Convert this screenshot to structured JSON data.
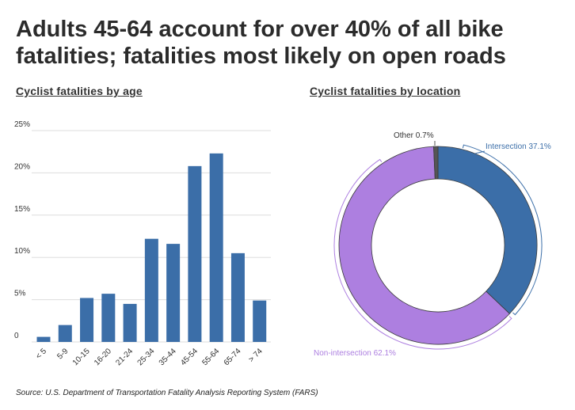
{
  "title": "Adults 45-64 account for over 40% of all bike fatalities; fatalities most likely on open roads",
  "source": "Source: U.S. Department of Transportation Fatality Analysis Reporting System (FARS)",
  "colors": {
    "bar": "#3b6ea8",
    "intersection": "#3b6ea8",
    "non_intersection": "#ad7fe0",
    "other": "#555555",
    "grid": "#dddddd"
  },
  "chart_data": [
    {
      "type": "bar",
      "title": "Cyclist fatalities by age",
      "categories": [
        "< 5",
        "5-9",
        "10-15",
        "16-20",
        "21-24",
        "25-34",
        "35-44",
        "45-54",
        "55-64",
        "65-74",
        "> 74"
      ],
      "values": [
        0.6,
        2.0,
        5.2,
        5.7,
        4.5,
        12.2,
        11.6,
        20.8,
        22.3,
        10.5,
        4.9
      ],
      "yticks": [
        "0",
        "5%",
        "10%",
        "15%",
        "20%",
        "25%"
      ],
      "ylim": [
        0,
        25
      ],
      "grid": true
    },
    {
      "type": "pie",
      "title": "Cyclist fatalities by location",
      "donut": true,
      "slices": [
        {
          "name": "Intersection",
          "value": 37.1,
          "label": "Intersection 37.1%"
        },
        {
          "name": "Non-intersection",
          "value": 62.1,
          "label": "Non-intersection 62.1%"
        },
        {
          "name": "Other",
          "value": 0.7,
          "label": "Other 0.7%"
        }
      ]
    }
  ]
}
